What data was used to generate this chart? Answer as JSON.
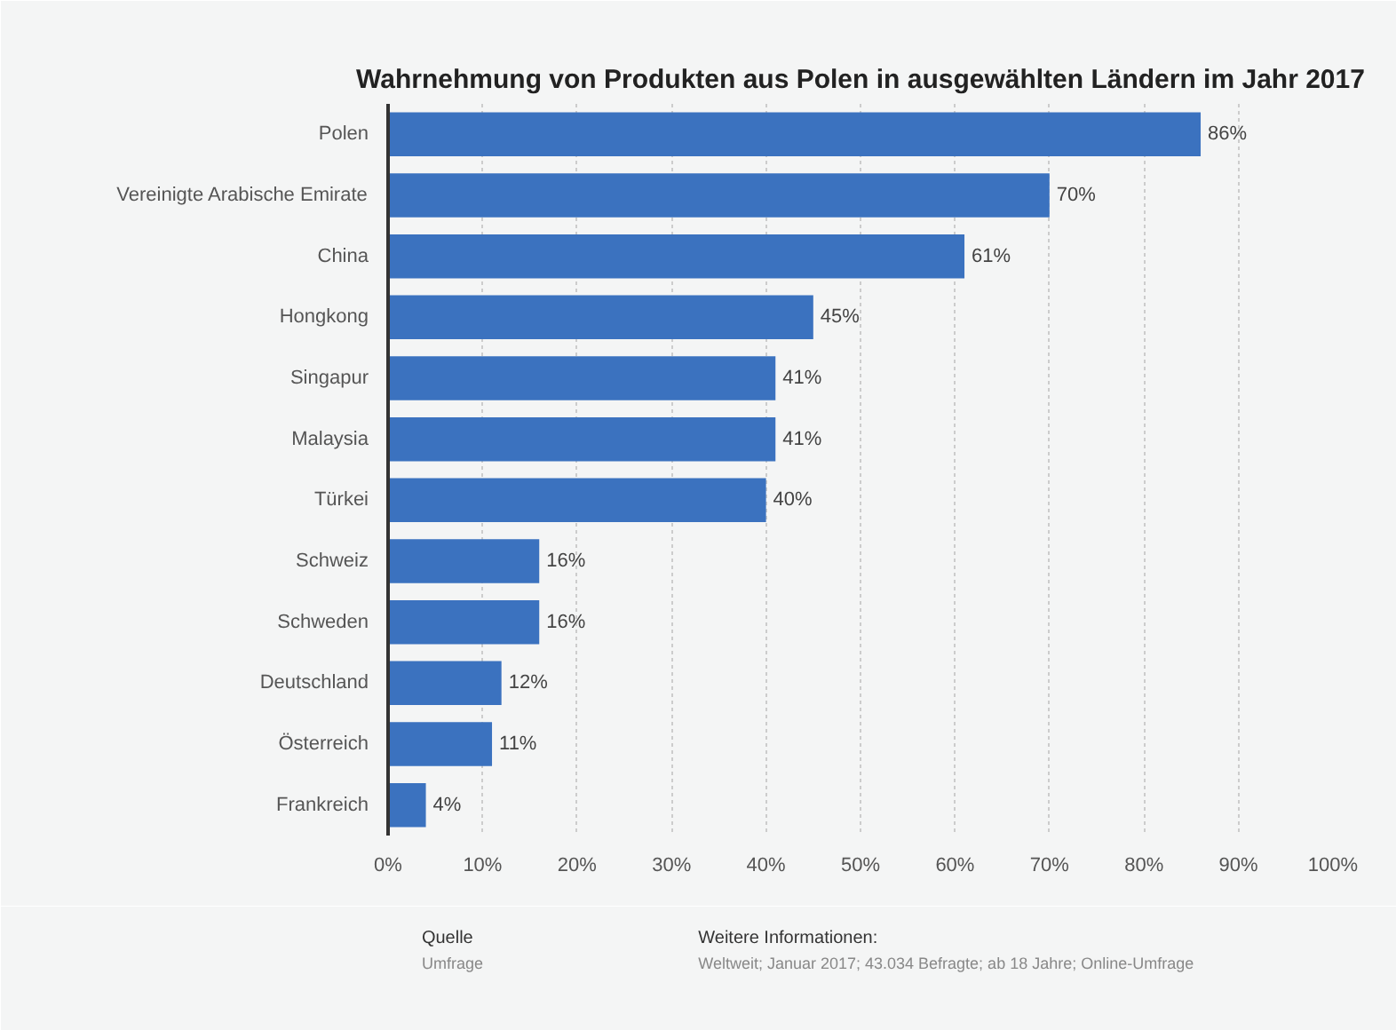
{
  "chart_data": {
    "type": "bar",
    "orientation": "horizontal",
    "title": "Wahrnehmung von Produkten aus Polen in ausgewählten Ländern im Jahr 2017",
    "categories": [
      "Polen",
      "Vereinigte Arabische Emirate",
      "China",
      "Hongkong",
      "Singapur",
      "Malaysia",
      "Türkei",
      "Schweiz",
      "Schweden",
      "Deutschland",
      "Österreich",
      "Frankreich"
    ],
    "values": [
      86,
      70,
      61,
      45,
      41,
      41,
      40,
      16,
      16,
      12,
      11,
      4
    ],
    "value_labels": [
      "86%",
      "70%",
      "61%",
      "45%",
      "41%",
      "41%",
      "40%",
      "16%",
      "16%",
      "12%",
      "11%",
      "4%"
    ],
    "color": "#3b72bf",
    "xlim": [
      0,
      100
    ],
    "xticks": [
      {
        "value": 0,
        "label": "0%"
      },
      {
        "value": 10,
        "label": "10%"
      },
      {
        "value": 20,
        "label": "20%"
      },
      {
        "value": 30,
        "label": "30%"
      },
      {
        "value": 40,
        "label": "40%"
      },
      {
        "value": 50,
        "label": "50%"
      },
      {
        "value": 60,
        "label": "60%"
      },
      {
        "value": 70,
        "label": "70%"
      },
      {
        "value": 80,
        "label": "80%"
      },
      {
        "value": 90,
        "label": "90%"
      },
      {
        "value": 100,
        "label": "100%"
      }
    ],
    "grid": "x",
    "annotations": [
      "Quelle",
      "Umfrage",
      "Weitere Informationen:",
      "Weltweit; Januar 2017; 43.034 Befragte; ab 18 Jahre; Online-Umfrage"
    ]
  }
}
